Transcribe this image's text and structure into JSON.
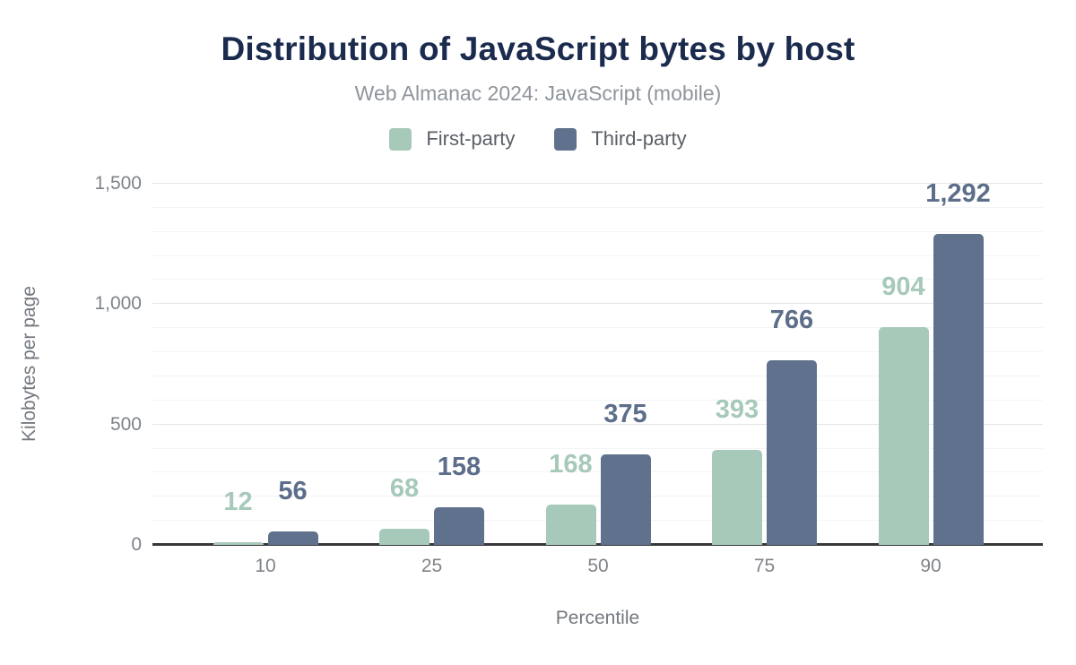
{
  "header": {
    "title": "Distribution of JavaScript bytes by host",
    "subtitle": "Web Almanac 2024: JavaScript (mobile)"
  },
  "legend": {
    "items": [
      {
        "label": "First-party",
        "color": "#a7c9b9"
      },
      {
        "label": "Third-party",
        "color": "#5f718c"
      }
    ]
  },
  "chart_data": {
    "type": "bar",
    "title": "Distribution of JavaScript bytes by host",
    "subtitle": "Web Almanac 2024: JavaScript (mobile)",
    "categories": [
      "10",
      "25",
      "50",
      "75",
      "90"
    ],
    "series": [
      {
        "name": "First-party",
        "color": "#a7c9b9",
        "label_color": "#a7c9b9",
        "values": [
          12,
          68,
          168,
          393,
          904
        ]
      },
      {
        "name": "Third-party",
        "color": "#5f718c",
        "label_color": "#5c6e8a",
        "values": [
          56,
          158,
          375,
          766,
          1292
        ]
      }
    ],
    "xlabel": "Percentile",
    "ylabel": "Kilobytes per page",
    "ylim": [
      0,
      1500
    ],
    "yticks": [
      0,
      500,
      1000,
      1500
    ],
    "ytick_labels": [
      "0",
      "500",
      "1,000",
      "1,500"
    ],
    "minor_grid_step": 100,
    "grid": true,
    "legend_position": "top",
    "data_labels": true,
    "data_label_values": {
      "first_party": [
        "12",
        "68",
        "168",
        "393",
        "904"
      ],
      "third_party": [
        "56",
        "158",
        "375",
        "766",
        "1,292"
      ]
    }
  },
  "colors": {
    "title": "#1b2b4e",
    "subtitle": "#8f959c",
    "axis_text": "#7f8489",
    "axis_line": "#38383a",
    "grid_minor": "#f3f4f5",
    "grid_major": "#e4e5e7",
    "background": "#ffffff"
  }
}
